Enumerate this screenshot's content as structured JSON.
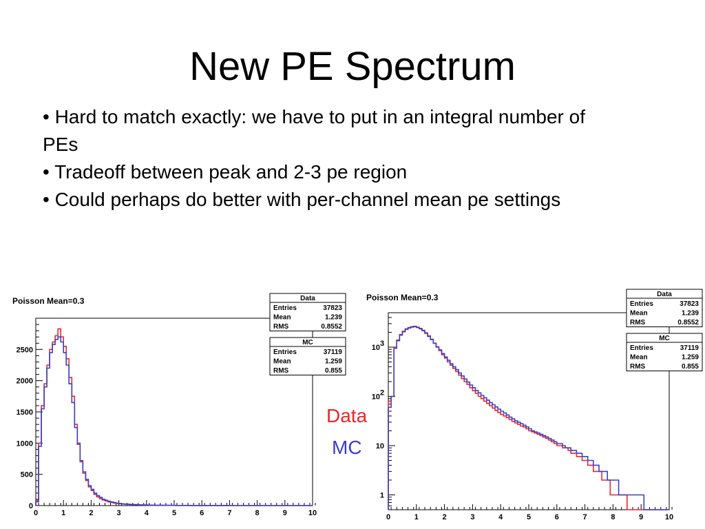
{
  "slide": {
    "title": "New PE Spectrum",
    "bullets": [
      "• Hard to match exactly: we have to put in an integral number of PEs",
      "• Tradeoff between peak and 2-3 pe region",
      "• Could perhaps do better with per-channel mean pe settings"
    ]
  },
  "legend": {
    "data_label": "Data",
    "mc_label": "MC",
    "data_color": "#e8262b",
    "mc_color": "#3a3fc7"
  },
  "chart_data": [
    {
      "type": "line",
      "title": "Poisson Mean=0.3",
      "xlabel": "",
      "ylabel": "",
      "xlim": [
        0,
        10
      ],
      "ylim": [
        0,
        3000
      ],
      "x_ticks": [
        0,
        1,
        2,
        3,
        4,
        5,
        6,
        7,
        8,
        9,
        10
      ],
      "y_ticks": [
        0,
        500,
        1000,
        1500,
        2000,
        2500
      ],
      "bin_width": 0.1,
      "series": [
        {
          "name": "Data",
          "color": "#e8262b",
          "values": [
            80,
            1000,
            1600,
            1950,
            2250,
            2500,
            2620,
            2720,
            2830,
            2700,
            2550,
            2350,
            2050,
            1750,
            1300,
            1000,
            700,
            520,
            400,
            300,
            240,
            180,
            140,
            110,
            90,
            75,
            60,
            50,
            40,
            35,
            30,
            25,
            22,
            20,
            18,
            16,
            14,
            12,
            10,
            9,
            8,
            7,
            6,
            5,
            5,
            4,
            4,
            3,
            3,
            3,
            2,
            2,
            2,
            2,
            2,
            1,
            1,
            1,
            1,
            1,
            1,
            1,
            1,
            1,
            1,
            1,
            1,
            1,
            1,
            1,
            0,
            0,
            0,
            0,
            0,
            0,
            0,
            0,
            0,
            0,
            0,
            0,
            0,
            0,
            0,
            0,
            0,
            0,
            0,
            0,
            0,
            0,
            0,
            0,
            0,
            0,
            0,
            0,
            0,
            0
          ]
        },
        {
          "name": "MC",
          "color": "#3a3fc7",
          "values": [
            60,
            950,
            1550,
            1900,
            2200,
            2450,
            2580,
            2660,
            2700,
            2620,
            2450,
            2250,
            1950,
            1650,
            1250,
            980,
            720,
            540,
            420,
            320,
            260,
            200,
            160,
            130,
            100,
            85,
            70,
            58,
            48,
            40,
            34,
            28,
            24,
            21,
            18,
            16,
            14,
            12,
            11,
            10,
            9,
            8,
            7,
            6,
            5,
            5,
            4,
            4,
            3,
            3,
            3,
            2,
            2,
            2,
            2,
            2,
            1,
            1,
            1,
            1,
            1,
            1,
            1,
            1,
            1,
            1,
            1,
            1,
            1,
            1,
            0,
            0,
            0,
            0,
            0,
            0,
            0,
            0,
            0,
            0,
            0,
            0,
            0,
            0,
            0,
            0,
            0,
            0,
            0,
            0,
            0,
            0,
            0,
            0,
            0,
            0,
            0,
            0,
            0,
            0
          ]
        }
      ],
      "stats": [
        {
          "title": "Data",
          "rows": [
            [
              "Entries",
              "37823"
            ],
            [
              "Mean",
              "1.239"
            ],
            [
              "RMS",
              "0.8552"
            ]
          ]
        },
        {
          "title": "MC",
          "rows": [
            [
              "Entries",
              "37119"
            ],
            [
              "Mean",
              "1.259"
            ],
            [
              "RMS",
              "0.855"
            ]
          ]
        }
      ]
    },
    {
      "type": "line",
      "title": "Poisson Mean=0.3",
      "xlabel": "",
      "ylabel": "",
      "xlim": [
        0,
        10
      ],
      "ylim": [
        0.5,
        5000
      ],
      "y_scale": "log",
      "x_ticks": [
        0,
        1,
        2,
        3,
        4,
        5,
        6,
        7,
        8,
        9,
        10
      ],
      "y_ticks": [
        {
          "value": 1,
          "label": "1"
        },
        {
          "value": 10,
          "label": "10"
        },
        {
          "value": 100,
          "label": "10",
          "exp": "2"
        },
        {
          "value": 1000,
          "label": "10",
          "exp": "3"
        }
      ],
      "bin_width": 0.1,
      "series": [
        {
          "name": "Data",
          "color": "#e8262b",
          "values": [
            80,
            100,
            1000,
            1400,
            1800,
            2100,
            2350,
            2500,
            2600,
            2650,
            2550,
            2400,
            2200,
            1950,
            1700,
            1450,
            1200,
            1000,
            850,
            700,
            600,
            500,
            430,
            370,
            320,
            270,
            230,
            200,
            175,
            150,
            130,
            115,
            100,
            90,
            80,
            72,
            65,
            58,
            52,
            47,
            43,
            40,
            37,
            34,
            31,
            29,
            27,
            25,
            24,
            22,
            20,
            19,
            18,
            17,
            16,
            15,
            14,
            13,
            12,
            11,
            10,
            10,
            9,
            9,
            8,
            7,
            7,
            6,
            6,
            5,
            5,
            4,
            4,
            3,
            3,
            3,
            2,
            2,
            2,
            1,
            1,
            1,
            1,
            1,
            1,
            0,
            0,
            0,
            0,
            0,
            0,
            0,
            0,
            0,
            0,
            0,
            0,
            0,
            0,
            0
          ]
        },
        {
          "name": "MC",
          "color": "#3a3fc7",
          "values": [
            60,
            100,
            950,
            1350,
            1750,
            2050,
            2300,
            2450,
            2550,
            2600,
            2500,
            2350,
            2150,
            1900,
            1650,
            1420,
            1200,
            1020,
            880,
            740,
            630,
            540,
            460,
            400,
            350,
            300,
            260,
            225,
            195,
            170,
            150,
            132,
            118,
            105,
            94,
            84,
            75,
            68,
            61,
            55,
            50,
            46,
            42,
            38,
            35,
            32,
            30,
            28,
            26,
            24,
            22,
            20,
            19,
            18,
            17,
            16,
            15,
            14,
            13,
            12,
            11,
            11,
            10,
            9,
            9,
            8,
            8,
            7,
            7,
            6,
            6,
            5,
            5,
            4,
            4,
            3,
            3,
            3,
            2,
            2,
            2,
            2,
            1,
            1,
            1,
            1,
            1,
            1,
            1,
            1,
            1,
            0,
            0,
            0,
            0,
            0,
            0,
            0,
            0,
            0
          ]
        }
      ],
      "stats": [
        {
          "title": "Data",
          "rows": [
            [
              "Entries",
              "37823"
            ],
            [
              "Mean",
              "1.239"
            ],
            [
              "RMS",
              "0.8552"
            ]
          ]
        },
        {
          "title": "MC",
          "rows": [
            [
              "Entries",
              "37119"
            ],
            [
              "Mean",
              "1.259"
            ],
            [
              "RMS",
              "0.855"
            ]
          ]
        }
      ]
    }
  ]
}
